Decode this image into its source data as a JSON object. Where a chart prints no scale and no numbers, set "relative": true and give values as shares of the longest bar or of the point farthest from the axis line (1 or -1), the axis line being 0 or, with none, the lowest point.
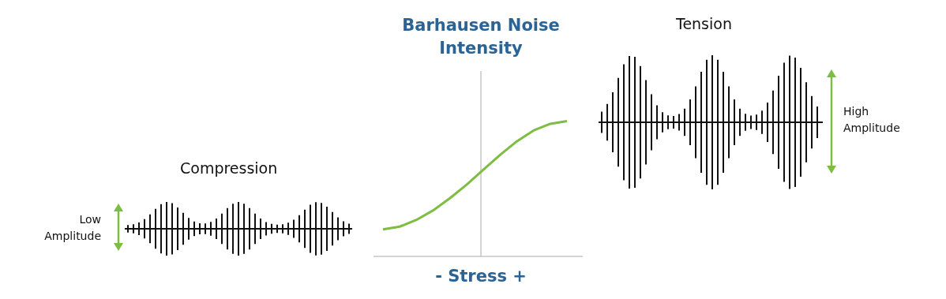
{
  "chart_data": {
    "type": "line",
    "title": "Barhausen Noise Intensity",
    "xlabel": "- Stress +",
    "relative": true,
    "categories": [
      null,
      null,
      null,
      null,
      null,
      null,
      null,
      null,
      null,
      null,
      null,
      null
    ],
    "series": [
      {
        "color": "#7cbd42",
        "values": [
          0.2,
          0.22,
          0.27,
          0.34,
          0.43,
          0.53,
          0.64,
          0.75,
          0.85,
          0.93,
          0.98,
          1.0
        ]
      }
    ],
    "marker": "none",
    "line_style": "solid",
    "annotations": [
      "Compression",
      "Low Amplitude",
      "Tension",
      "High Amplitude"
    ]
  }
}
